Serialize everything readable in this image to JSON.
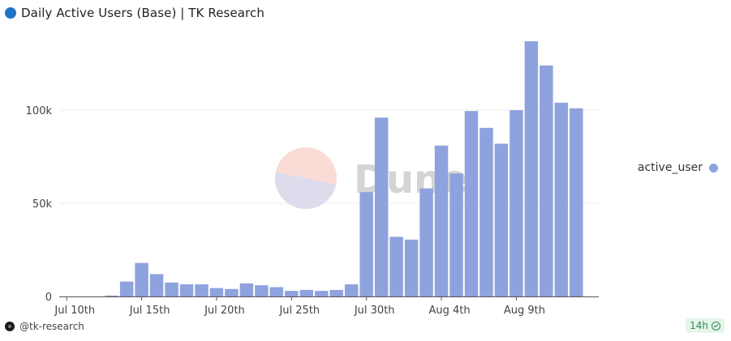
{
  "header": {
    "title": "Daily Active Users (Base) | TK Research"
  },
  "watermark": {
    "text": "Dune"
  },
  "legend": {
    "label": "active_user",
    "color": "#8ea2dd"
  },
  "footer": {
    "handle": "@tk-research",
    "age": "14h"
  },
  "colors": {
    "bar": "#8ea2dd",
    "title_dot": "#1f73c6",
    "badge_text": "#2e8b57"
  },
  "chart_data": {
    "type": "bar",
    "x_tick_labels": [
      "Jul 10th",
      "Jul 15th",
      "Jul 20th",
      "Jul 25th",
      "Jul 30th",
      "Aug 4th",
      "Aug 9th"
    ],
    "y_tick_labels": [
      "0",
      "50k",
      "100k"
    ],
    "ylim": [
      0,
      140000
    ],
    "grid": true,
    "legend_position": "right",
    "x": [
      "Jul 10",
      "Jul 11",
      "Jul 12",
      "Jul 13",
      "Jul 14",
      "Jul 15",
      "Jul 16",
      "Jul 17",
      "Jul 18",
      "Jul 19",
      "Jul 20",
      "Jul 21",
      "Jul 22",
      "Jul 23",
      "Jul 24",
      "Jul 25",
      "Jul 26",
      "Jul 27",
      "Jul 28",
      "Jul 29",
      "Jul 30",
      "Jul 31",
      "Aug 1",
      "Aug 2",
      "Aug 3",
      "Aug 4",
      "Aug 5",
      "Aug 6",
      "Aug 7",
      "Aug 8",
      "Aug 9",
      "Aug 10",
      "Aug 11",
      "Aug 12",
      "Aug 13",
      "Aug 14"
    ],
    "series": [
      {
        "name": "active_user",
        "values": [
          0,
          0,
          0,
          500,
          8000,
          18000,
          12000,
          7500,
          6500,
          6500,
          4500,
          4000,
          7000,
          6000,
          5000,
          3000,
          3500,
          3000,
          3500,
          6500,
          56000,
          96000,
          32000,
          30500,
          58000,
          81000,
          66000,
          99500,
          90500,
          82000,
          100000,
          137000,
          124000,
          104000,
          101000,
          0
        ]
      }
    ]
  }
}
